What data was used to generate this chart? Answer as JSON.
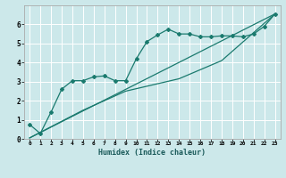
{
  "title": "",
  "xlabel": "Humidex (Indice chaleur)",
  "bg_color": "#cce8ea",
  "grid_color": "#ffffff",
  "line_color": "#1a7a6e",
  "xlim": [
    0,
    23
  ],
  "ylim": [
    0,
    7.0
  ],
  "xticks": [
    0,
    1,
    2,
    3,
    4,
    5,
    6,
    7,
    8,
    9,
    10,
    11,
    12,
    13,
    14,
    15,
    16,
    17,
    18,
    19,
    20,
    21,
    22,
    23
  ],
  "yticks": [
    0,
    1,
    2,
    3,
    4,
    5,
    6
  ],
  "line1_x": [
    0,
    1,
    2,
    3,
    4,
    5,
    6,
    7,
    8,
    9,
    10,
    11,
    12,
    13,
    14,
    15,
    16,
    17,
    18,
    19,
    20,
    21,
    22,
    23
  ],
  "line1_y": [
    0.75,
    0.28,
    1.4,
    2.6,
    3.05,
    3.05,
    3.25,
    3.3,
    3.05,
    3.05,
    4.2,
    5.1,
    5.45,
    5.75,
    5.5,
    5.5,
    5.35,
    5.35,
    5.4,
    5.4,
    5.35,
    5.5,
    5.9,
    6.55
  ],
  "line2_x": [
    0,
    23
  ],
  "line2_y": [
    0.05,
    6.55
  ],
  "line3_x": [
    0,
    5,
    9,
    14,
    18,
    23
  ],
  "line3_y": [
    0.05,
    1.5,
    2.5,
    3.15,
    4.1,
    6.55
  ]
}
